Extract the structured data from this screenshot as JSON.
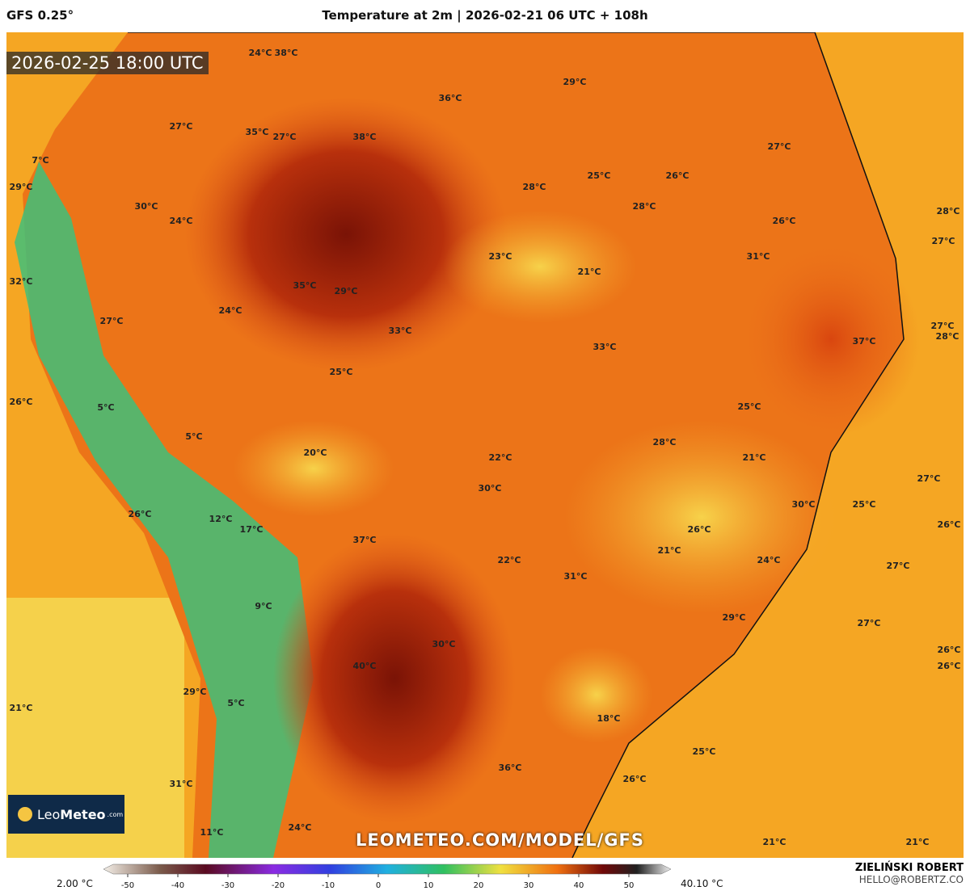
{
  "header": {
    "model": "GFS 0.25°",
    "title": "Temperature at 2m | 2026-02-21 06 UTC + 108h",
    "valid_time": "2026-02-25 18:00 UTC"
  },
  "map": {
    "labels": [
      "24°C",
      "38°C",
      "36°C",
      "29°C",
      "27°C",
      "35°C",
      "27°C",
      "38°C",
      "27°C",
      "7°C",
      "25°C",
      "26°C",
      "28°C",
      "29°C",
      "30°C",
      "28°C",
      "24°C",
      "26°C",
      "28°C",
      "27°C",
      "31°C",
      "23°C",
      "21°C",
      "32°C",
      "35°C",
      "29°C",
      "24°C",
      "27°C",
      "27°C",
      "28°C",
      "33°C",
      "37°C",
      "33°C",
      "25°C",
      "26°C",
      "5°C",
      "25°C",
      "5°C",
      "28°C",
      "20°C",
      "21°C",
      "22°C",
      "30°C",
      "27°C",
      "30°C",
      "25°C",
      "26°C",
      "12°C",
      "17°C",
      "26°C",
      "26°C",
      "37°C",
      "21°C",
      "22°C",
      "24°C",
      "27°C",
      "31°C",
      "9°C",
      "29°C",
      "27°C",
      "30°C",
      "26°C",
      "26°C",
      "40°C",
      "29°C",
      "5°C",
      "21°C",
      "18°C",
      "25°C",
      "36°C",
      "26°C",
      "31°C",
      "11°C",
      "24°C",
      "21°C",
      "21°C"
    ]
  },
  "watermark": "LEOMETEO.COM/MODEL/GFS",
  "logo": {
    "leo": "Leo",
    "meteo": "Meteo",
    "suffix": ".com"
  },
  "colorbar": {
    "min_label": "2.00 °C",
    "max_label": "40.10 °C",
    "ticks": [
      -50,
      -40,
      -30,
      -20,
      -10,
      0,
      10,
      20,
      30,
      40,
      50
    ]
  },
  "credit": {
    "author": "ZIELIŃSKI ROBERT",
    "email": "HELLO@ROBERTZ.CO"
  }
}
